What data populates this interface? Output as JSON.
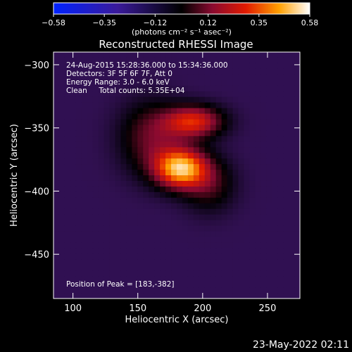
{
  "chart_data": {
    "type": "heatmap",
    "title": "Reconstructed RHESSI Image",
    "xlabel": "Heliocentric X (arcsec)",
    "ylabel": "Heliocentric Y (arcsec)",
    "xlim": [
      85,
      275
    ],
    "ylim": [
      -485,
      -290
    ],
    "x_ticks": [
      100,
      150,
      200,
      250
    ],
    "y_ticks": [
      -300,
      -350,
      -400,
      -450
    ],
    "colorbar": {
      "min": -0.58,
      "max": 0.58,
      "ticks": [
        "-0.58",
        "-0.35",
        "-0.12",
        "0.12",
        "0.35",
        "0.58"
      ],
      "unit_label": "(photons cm⁻² s⁻¹ asec⁻²)"
    },
    "annotations": [
      "24-Aug-2015 15:28:36.000 to 15:34:36.000",
      "Detectors: 3F 5F 6F 7F, Att 0",
      "Energy Range: 3.0 - 6.0 keV",
      "Clean     Total counts: 5.35E+04"
    ],
    "peak_label": "Position of Peak = [183,-382]",
    "peak": {
      "x": 183,
      "y": -382,
      "value": 0.58
    },
    "sources": [
      {
        "x": 183,
        "y": -382,
        "amplitude": 0.58,
        "sigma_x": 14,
        "sigma_y": 11
      },
      {
        "x": 193,
        "y": -345,
        "amplitude": 0.4,
        "sigma_x": 16,
        "sigma_y": 9
      },
      {
        "x": 160,
        "y": -358,
        "amplitude": 0.22,
        "sigma_x": 17,
        "sigma_y": 20
      },
      {
        "x": 205,
        "y": -395,
        "amplitude": 0.18,
        "sigma_x": 14,
        "sigma_y": 15
      }
    ],
    "background_level": -0.12,
    "colors": {
      "negative_end": "#0022ff",
      "mid": "#000000",
      "positive_end": "#ffffff"
    }
  },
  "footer": {
    "timestamp": "23-May-2022 02:11"
  }
}
